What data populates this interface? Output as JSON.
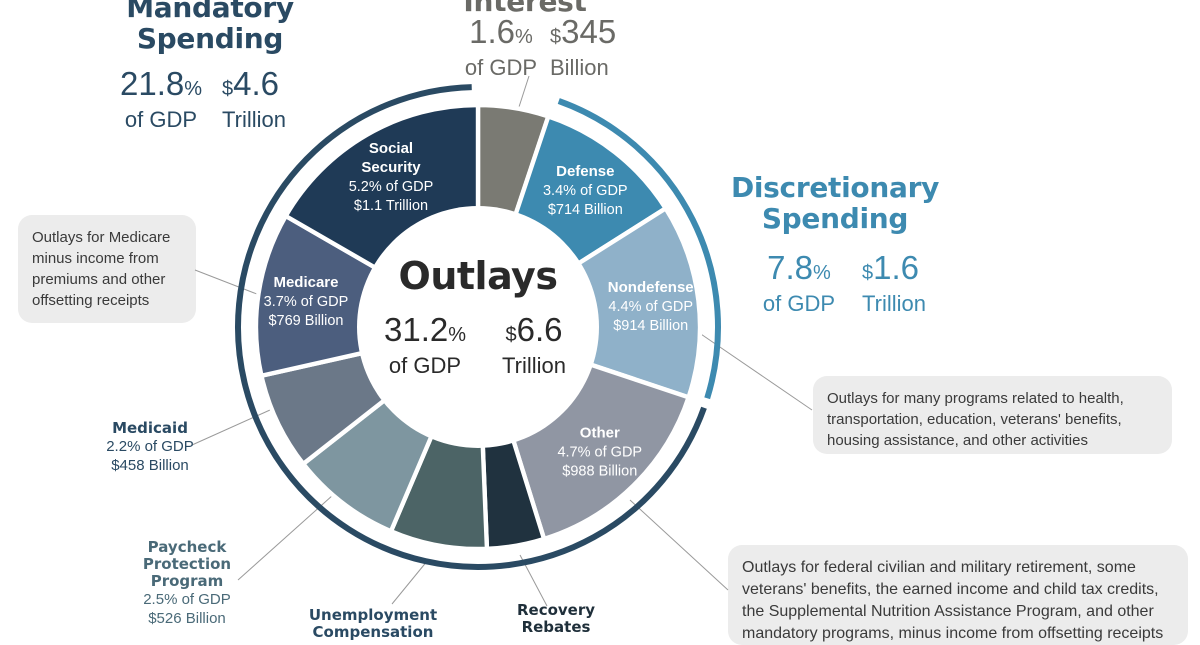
{
  "headings": {
    "mandatory": {
      "title_line1": "Mandatory",
      "title_line2": "Spending",
      "pct": "21.8",
      "pct_unit": "%",
      "pct_label": "of GDP",
      "amt_prefix": "$",
      "amt": "4.6",
      "amt_label": "Trillion",
      "color": "#2a4a63"
    },
    "interest": {
      "title": "Interest",
      "pct": "1.6",
      "pct_unit": "%",
      "pct_label": "of GDP",
      "amt_prefix": "$",
      "amt": "345",
      "amt_label": "Billion",
      "color": "#6a6a66"
    },
    "discretionary": {
      "title_line1": "Discretionary",
      "title_line2": "Spending",
      "pct": "7.8",
      "pct_unit": "%",
      "pct_label": "of GDP",
      "amt_prefix": "$",
      "amt": "1.6",
      "amt_label": "Trillion",
      "color": "#3d8ab0"
    }
  },
  "center": {
    "title": "Outlays",
    "pct": "31.2",
    "pct_unit": "%",
    "pct_label": "of GDP",
    "amt_prefix": "$",
    "amt": "6.6",
    "amt_label": "Trillion"
  },
  "callouts": {
    "medicare": "Outlays for Medicare minus income from premiums and other offsetting receipts",
    "nondefense": "Outlays for many programs related to health, transportation, education, veterans' benefits, housing assistance, and other activities",
    "other": "Outlays for federal civilian and military retirement, some veterans' benefits, the earned income and child tax credits, the Supplemental Nutrition Assistance Program, and other mandatory programs, minus income from offsetting receipts"
  },
  "chart_data": {
    "type": "pie",
    "title": "Outlays",
    "unit": "% of GDP",
    "slices": [
      {
        "key": "interest",
        "name": "Interest",
        "value": 1.6,
        "amount": "$345 Billion",
        "color": "#7a7a73",
        "group": "interest"
      },
      {
        "key": "defense",
        "name": "Defense",
        "value": 3.4,
        "amount": "$714 Billion",
        "color": "#3d8ab0",
        "group": "discretionary",
        "label_pct": "3.4% of GDP",
        "label_amt": "$714 Billion",
        "label_color": "#ffffff"
      },
      {
        "key": "nondefense",
        "name": "Nondefense",
        "value": 4.4,
        "amount": "$914 Billion",
        "color": "#8fb1c9",
        "group": "discretionary",
        "label_pct": "4.4% of GDP",
        "label_amt": "$914 Billion",
        "label_color": "#ffffff"
      },
      {
        "key": "other",
        "name": "Other",
        "value": 4.7,
        "amount": "$988 Billion",
        "color": "#9096a3",
        "group": "mandatory",
        "label_pct": "4.7% of GDP",
        "label_amt": "$988 Billion",
        "label_color": "#ffffff"
      },
      {
        "key": "recovery_rebates",
        "name": "Recovery Rebates",
        "value": 1.3,
        "color": "#20323f",
        "group": "mandatory"
      },
      {
        "key": "unemployment",
        "name": "Unemployment Compensation",
        "value": 2.2,
        "color": "#4c6466",
        "group": "mandatory"
      },
      {
        "key": "ppp",
        "name": "Paycheck Protection Program",
        "value": 2.5,
        "amount": "$526 Billion",
        "color": "#7e96a0",
        "group": "mandatory"
      },
      {
        "key": "medicaid",
        "name": "Medicaid",
        "value": 2.2,
        "amount": "$458 Billion",
        "color": "#6b7888",
        "group": "mandatory"
      },
      {
        "key": "medicare",
        "name": "Medicare",
        "value": 3.7,
        "amount": "$769 Billion",
        "color": "#4c5e7e",
        "group": "mandatory",
        "label_pct": "3.7% of GDP",
        "label_amt": "$769 Billion",
        "label_color": "#ffffff"
      },
      {
        "key": "social_security",
        "name": "Social Security",
        "value": 5.2,
        "amount": "$1.1 Trillion",
        "color": "#1f3a56",
        "group": "mandatory",
        "label_pct": "5.2% of GDP",
        "label_amt": "$1.1 Trillion",
        "label_color": "#ffffff"
      }
    ],
    "outside_labels": {
      "medicaid": {
        "title": "Medicaid",
        "pct": "2.2% of GDP",
        "amt": "$458 Billion",
        "color": "#2a4a63"
      },
      "ppp": {
        "title_line1": "Paycheck",
        "title_line2": "Protection",
        "title_line3": "Program",
        "pct": "2.5% of GDP",
        "amt": "$526 Billion",
        "color": "#4a6a78"
      },
      "unemployment": {
        "title_line1": "Unemployment",
        "title_line2": "Compensation",
        "color": "#2a4a63"
      },
      "recovery_rebates": {
        "title_line1": "Recovery",
        "title_line2": "Rebates",
        "color": "#1f2f3a"
      }
    },
    "inner_titles": {
      "social_security": {
        "line1": "Social",
        "line2": "Security"
      },
      "defense": {
        "line1": "Defense"
      },
      "medicare": {
        "line1": "Medicare"
      },
      "nondefense": {
        "line1": "Nondefense"
      },
      "other": {
        "line1": "Other"
      }
    }
  }
}
